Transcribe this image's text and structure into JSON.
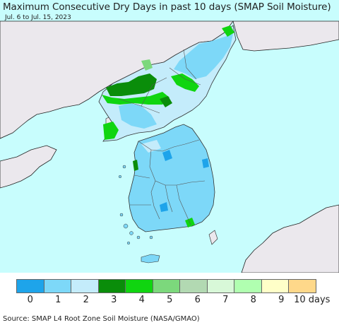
{
  "title": "Maximum Consecutive Dry Days in past 10 days (SMAP Soil Moisture)",
  "subtitle": "Jul. 6 to Jul. 15, 2023",
  "legend": {
    "colors": [
      "#1ea4ea",
      "#7dd8f8",
      "#c4ecfb",
      "#0a8d0a",
      "#10d510",
      "#7cd87c",
      "#b2d9b2",
      "#d8f8d8",
      "#b0ffb0",
      "#ffffc8",
      "#fed88a"
    ],
    "labels": [
      "0",
      "1",
      "2",
      "3",
      "4",
      "5",
      "6",
      "7",
      "8",
      "9",
      "10 days"
    ]
  },
  "source": "Source: SMAP L4 Root Zone Soil Moisture (NASA/GMAO)",
  "map": {
    "sea_color": "#c8fdfd",
    "no_data_land_color": "#ebe8ed",
    "region": "Korean Peninsula"
  }
}
